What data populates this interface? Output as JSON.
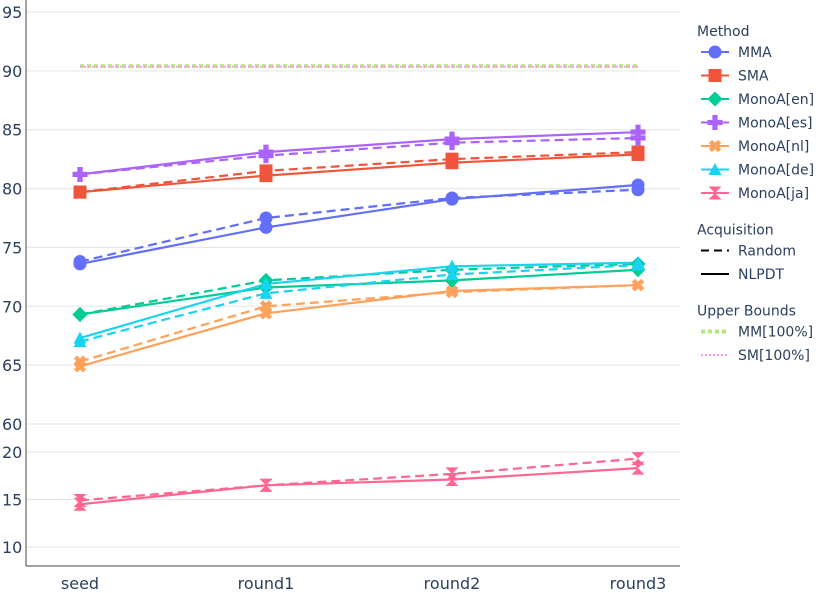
{
  "chart_data": {
    "type": "line",
    "categories": [
      "seed",
      "round1",
      "round2",
      "round3"
    ],
    "axis": {
      "top_panel": {
        "ylim": [
          60,
          95
        ],
        "ticks": [
          60,
          65,
          70,
          75,
          80,
          85,
          90,
          95
        ]
      },
      "bottom_panel": {
        "ylim": [
          8,
          22
        ],
        "ticks": [
          10,
          15,
          20
        ]
      },
      "grid": true
    },
    "series": [
      {
        "name": "MMA",
        "color": "#636efa",
        "marker": "circle",
        "panel": "top",
        "nlpdt": [
          73.6,
          76.7,
          79.1,
          80.3
        ],
        "random": [
          73.8,
          77.5,
          79.2,
          79.9
        ]
      },
      {
        "name": "SMA",
        "color": "#ef553b",
        "marker": "square",
        "panel": "top",
        "nlpdt": [
          79.7,
          81.1,
          82.2,
          82.9
        ],
        "random": [
          79.7,
          81.5,
          82.5,
          83.1
        ]
      },
      {
        "name": "MonoA[en]",
        "color": "#00cc96",
        "marker": "diamond",
        "panel": "top",
        "nlpdt": [
          69.3,
          71.6,
          72.2,
          73.1
        ],
        "random": [
          69.3,
          72.2,
          73.1,
          73.6
        ]
      },
      {
        "name": "MonoA[es]",
        "color": "#ab63fa",
        "marker": "cross",
        "panel": "top",
        "nlpdt": [
          81.2,
          83.1,
          84.2,
          84.8
        ],
        "random": [
          81.2,
          82.8,
          83.9,
          84.3
        ]
      },
      {
        "name": "MonoA[nl]",
        "color": "#ffa15a",
        "marker": "x",
        "panel": "top",
        "nlpdt": [
          64.9,
          69.4,
          71.3,
          71.8
        ],
        "random": [
          65.3,
          70.0,
          71.2,
          71.8
        ]
      },
      {
        "name": "MonoA[de]",
        "color": "#19d3f3",
        "marker": "triangle-up",
        "panel": "top",
        "nlpdt": [
          67.3,
          71.9,
          73.4,
          73.7
        ],
        "random": [
          67.0,
          71.1,
          72.7,
          73.5
        ]
      },
      {
        "name": "MonoA[ja]",
        "color": "#ff6692",
        "marker": "hourglass",
        "panel": "bottom",
        "nlpdt": [
          14.5,
          16.5,
          17.1,
          18.3
        ],
        "random": [
          14.9,
          16.5,
          17.7,
          19.3
        ]
      }
    ],
    "upper_bounds": [
      {
        "name": "MM[100%]",
        "value": 90.4,
        "color": "#b6e880"
      },
      {
        "name": "SM[100%]",
        "value": 90.4,
        "color": "#ff97ff"
      }
    ],
    "legend": {
      "placement": "right",
      "groups": [
        {
          "title": "Method",
          "items": [
            "MMA",
            "SMA",
            "MonoA[en]",
            "MonoA[es]",
            "MonoA[nl]",
            "MonoA[de]",
            "MonoA[ja]"
          ]
        },
        {
          "title": "Acquisition",
          "items": [
            "Random",
            "NLPDT"
          ]
        },
        {
          "title": "Upper Bounds",
          "items": [
            "MM[100%]",
            "SM[100%]"
          ]
        }
      ]
    },
    "acquisition_styles": {
      "Random": "dashed",
      "NLPDT": "solid"
    }
  }
}
